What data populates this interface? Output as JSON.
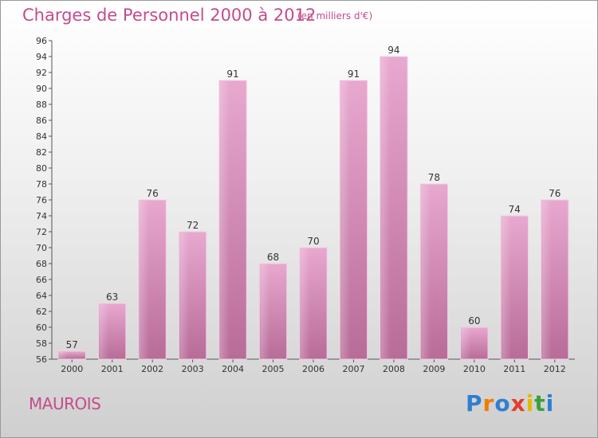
{
  "header": {
    "title": "Charges de Personnel 2000 à 2012",
    "subtitle": "(en milliers d'€)"
  },
  "commune": "MAUROIS",
  "logo": {
    "letters": [
      "P",
      "r",
      "o",
      "x",
      "i",
      "t",
      "i"
    ],
    "colors": [
      "#2f7fd0",
      "#f07c00",
      "#2f7fd0",
      "#e63c2f",
      "#e6b800",
      "#3aa13a",
      "#2f7fd0"
    ]
  },
  "colors": {
    "bar_light": "#e8a8cf",
    "bar_dark": "#b86c98",
    "accent": "#c54b8c"
  },
  "chart_data": {
    "type": "bar",
    "categories": [
      "2000",
      "2001",
      "2002",
      "2003",
      "2004",
      "2005",
      "2006",
      "2007",
      "2008",
      "2009",
      "2010",
      "2011",
      "2012"
    ],
    "values": [
      57,
      63,
      76,
      72,
      91,
      68,
      70,
      91,
      94,
      78,
      60,
      74,
      76
    ],
    "value_labels": [
      "57",
      "63",
      "76",
      "72",
      "91",
      "68",
      "70",
      "91",
      "94",
      "78",
      "60",
      "74",
      "76"
    ],
    "yticks": [
      "56",
      "58",
      "60",
      "62",
      "64",
      "66",
      "68",
      "70",
      "72",
      "74",
      "76",
      "78",
      "80",
      "82",
      "84",
      "86",
      "88",
      "90",
      "92",
      "94",
      "96"
    ],
    "ylim": [
      56,
      96
    ],
    "grid": false
  }
}
